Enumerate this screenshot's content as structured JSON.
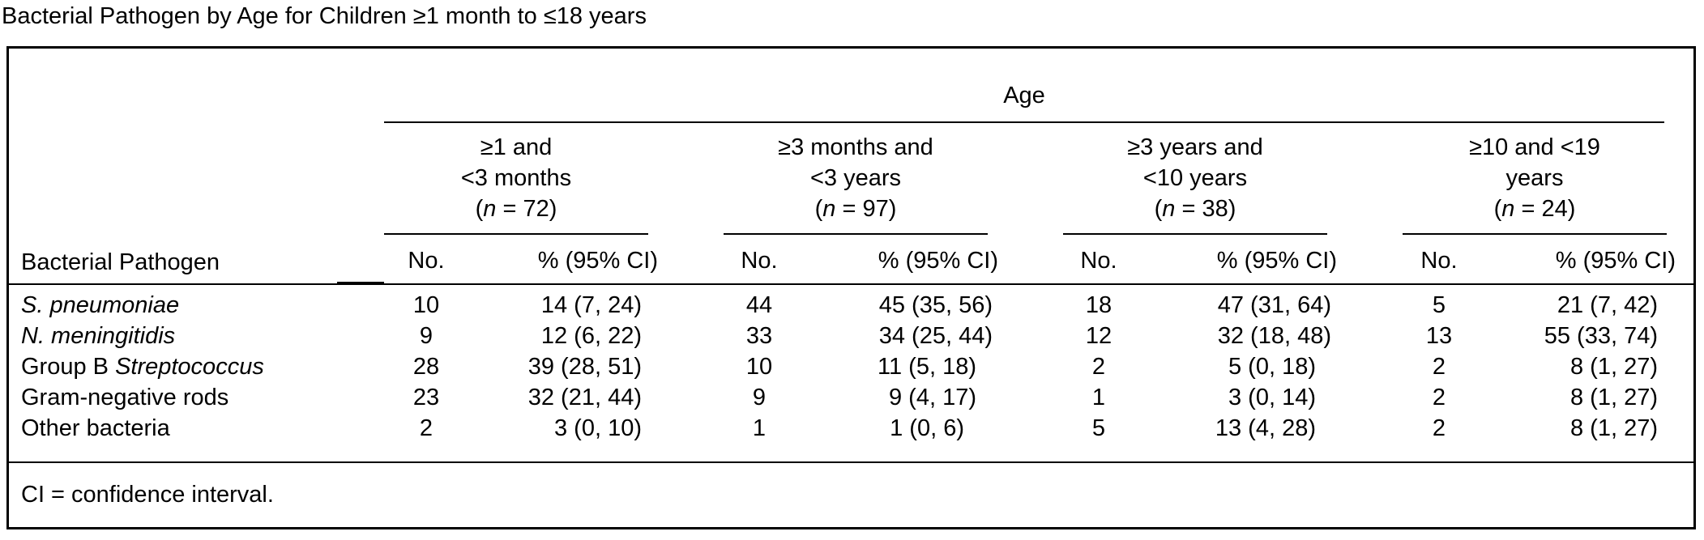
{
  "title": "Bacterial Pathogen by Age for Children ≥1 month to ≤18 years",
  "table": {
    "spanner": "Age",
    "groups": [
      {
        "line1": "≥1 and",
        "line2": "<3 months",
        "n_prefix": "(",
        "n_var": "n",
        "n_rest": " = 72)"
      },
      {
        "line1": "≥3 months and",
        "line2": "<3 years",
        "n_prefix": "(",
        "n_var": "n",
        "n_rest": " = 97)"
      },
      {
        "line1": "≥3 years and",
        "line2": "<10 years",
        "n_prefix": "(",
        "n_var": "n",
        "n_rest": " = 38)"
      },
      {
        "line1": "≥10 and <19",
        "line2": "years",
        "n_prefix": "(",
        "n_var": "n",
        "n_rest": " = 24)"
      }
    ],
    "row_header": "Bacterial Pathogen",
    "sub_no": "No.",
    "sub_pct": "% (95% CI)",
    "rows": [
      {
        "pre": "",
        "italic": "S. pneumoniae",
        "post": "",
        "cells": [
          "10",
          "14 (7, 24)",
          "44",
          "45 (35, 56)",
          "18",
          "47 (31, 64)",
          "5",
          "21 (7, 42)"
        ]
      },
      {
        "pre": "",
        "italic": "N. meningitidis",
        "post": "",
        "cells": [
          "9",
          "12 (6, 22)",
          "33",
          "34 (25, 44)",
          "12",
          "32 (18, 48)",
          "13",
          "55 (33, 74)"
        ]
      },
      {
        "pre": "Group B ",
        "italic": "Streptococcus",
        "post": "",
        "cells": [
          "28",
          "39 (28, 51)",
          "10",
          "11 (5, 18)",
          "2",
          "5 (0, 18)",
          "2",
          "8 (1, 27)"
        ]
      },
      {
        "pre": "Gram-negative rods",
        "italic": "",
        "post": "",
        "cells": [
          "23",
          "32 (21, 44)",
          "9",
          "9 (4, 17)",
          "1",
          "3 (0, 14)",
          "2",
          "8 (1, 27)"
        ]
      },
      {
        "pre": "Other bacteria",
        "italic": "",
        "post": "",
        "cells": [
          "2",
          "3 (0, 10)",
          "1",
          "1 (0, 6)",
          "5",
          "13 (4, 28)",
          "2",
          "8 (1, 27)"
        ]
      }
    ],
    "footnote": "CI = confidence interval."
  }
}
